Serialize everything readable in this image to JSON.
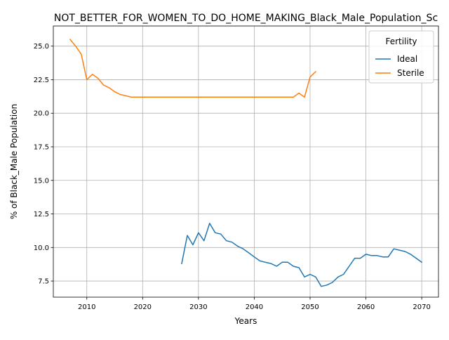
{
  "chart_data": {
    "type": "line",
    "title": "NOT_BETTER_FOR_WOMEN_TO_DO_HOME_MAKING_Black_Male_Population_Sc",
    "xlabel": "Years",
    "ylabel": "% of Black_Male Population",
    "xlim": [
      2004,
      2073
    ],
    "ylim": [
      6.3,
      26.5
    ],
    "xticks": [
      2010,
      2020,
      2030,
      2040,
      2050,
      2060,
      2070
    ],
    "yticks": [
      7.5,
      10.0,
      12.5,
      15.0,
      17.5,
      20.0,
      22.5,
      25.0
    ],
    "xtick_labels": [
      "2010",
      "2020",
      "2030",
      "2040",
      "2050",
      "2060",
      "2070"
    ],
    "ytick_labels": [
      "7.5",
      "10.0",
      "12.5",
      "15.0",
      "17.5",
      "20.0",
      "22.5",
      "25.0"
    ],
    "grid": true,
    "legend": {
      "title": "Fertility",
      "position": "top-right"
    },
    "series": [
      {
        "name": "Ideal",
        "color": "#1f77b4",
        "x": [
          2027,
          2028,
          2029,
          2030,
          2031,
          2032,
          2033,
          2034,
          2035,
          2036,
          2037,
          2038,
          2039,
          2040,
          2041,
          2042,
          2043,
          2044,
          2045,
          2046,
          2047,
          2048,
          2049,
          2050,
          2051,
          2052,
          2053,
          2054,
          2055,
          2056,
          2057,
          2058,
          2059,
          2060,
          2061,
          2062,
          2063,
          2064,
          2065,
          2066,
          2067,
          2068,
          2069,
          2070
        ],
        "y": [
          8.8,
          10.9,
          10.2,
          11.1,
          10.5,
          11.8,
          11.1,
          11.0,
          10.5,
          10.4,
          10.1,
          9.9,
          9.6,
          9.3,
          9.0,
          8.9,
          8.8,
          8.6,
          8.9,
          8.9,
          8.6,
          8.5,
          7.8,
          8.0,
          7.8,
          7.1,
          7.2,
          7.4,
          7.8,
          8.0,
          8.6,
          9.2,
          9.2,
          9.5,
          9.4,
          9.4,
          9.3,
          9.3,
          9.9,
          9.8,
          9.7,
          9.5,
          9.2,
          8.9
        ]
      },
      {
        "name": "Sterile",
        "color": "#ff7f0e",
        "x": [
          2007,
          2008,
          2009,
          2010,
          2011,
          2012,
          2013,
          2014,
          2015,
          2016,
          2017,
          2018,
          2019,
          2020,
          2021,
          2022,
          2023,
          2024,
          2025,
          2026,
          2027,
          2028,
          2029,
          2030,
          2031,
          2032,
          2033,
          2034,
          2035,
          2036,
          2037,
          2038,
          2039,
          2040,
          2041,
          2042,
          2043,
          2044,
          2045,
          2046,
          2047,
          2048,
          2049,
          2050,
          2051
        ],
        "y": [
          25.5,
          25.0,
          24.4,
          22.5,
          22.9,
          22.6,
          22.1,
          21.9,
          21.6,
          21.4,
          21.3,
          21.2,
          21.2,
          21.2,
          21.2,
          21.2,
          21.2,
          21.2,
          21.2,
          21.2,
          21.2,
          21.2,
          21.2,
          21.2,
          21.2,
          21.2,
          21.2,
          21.2,
          21.2,
          21.2,
          21.2,
          21.2,
          21.2,
          21.2,
          21.2,
          21.2,
          21.2,
          21.2,
          21.2,
          21.2,
          21.2,
          21.5,
          21.2,
          22.7,
          23.1
        ]
      }
    ]
  }
}
